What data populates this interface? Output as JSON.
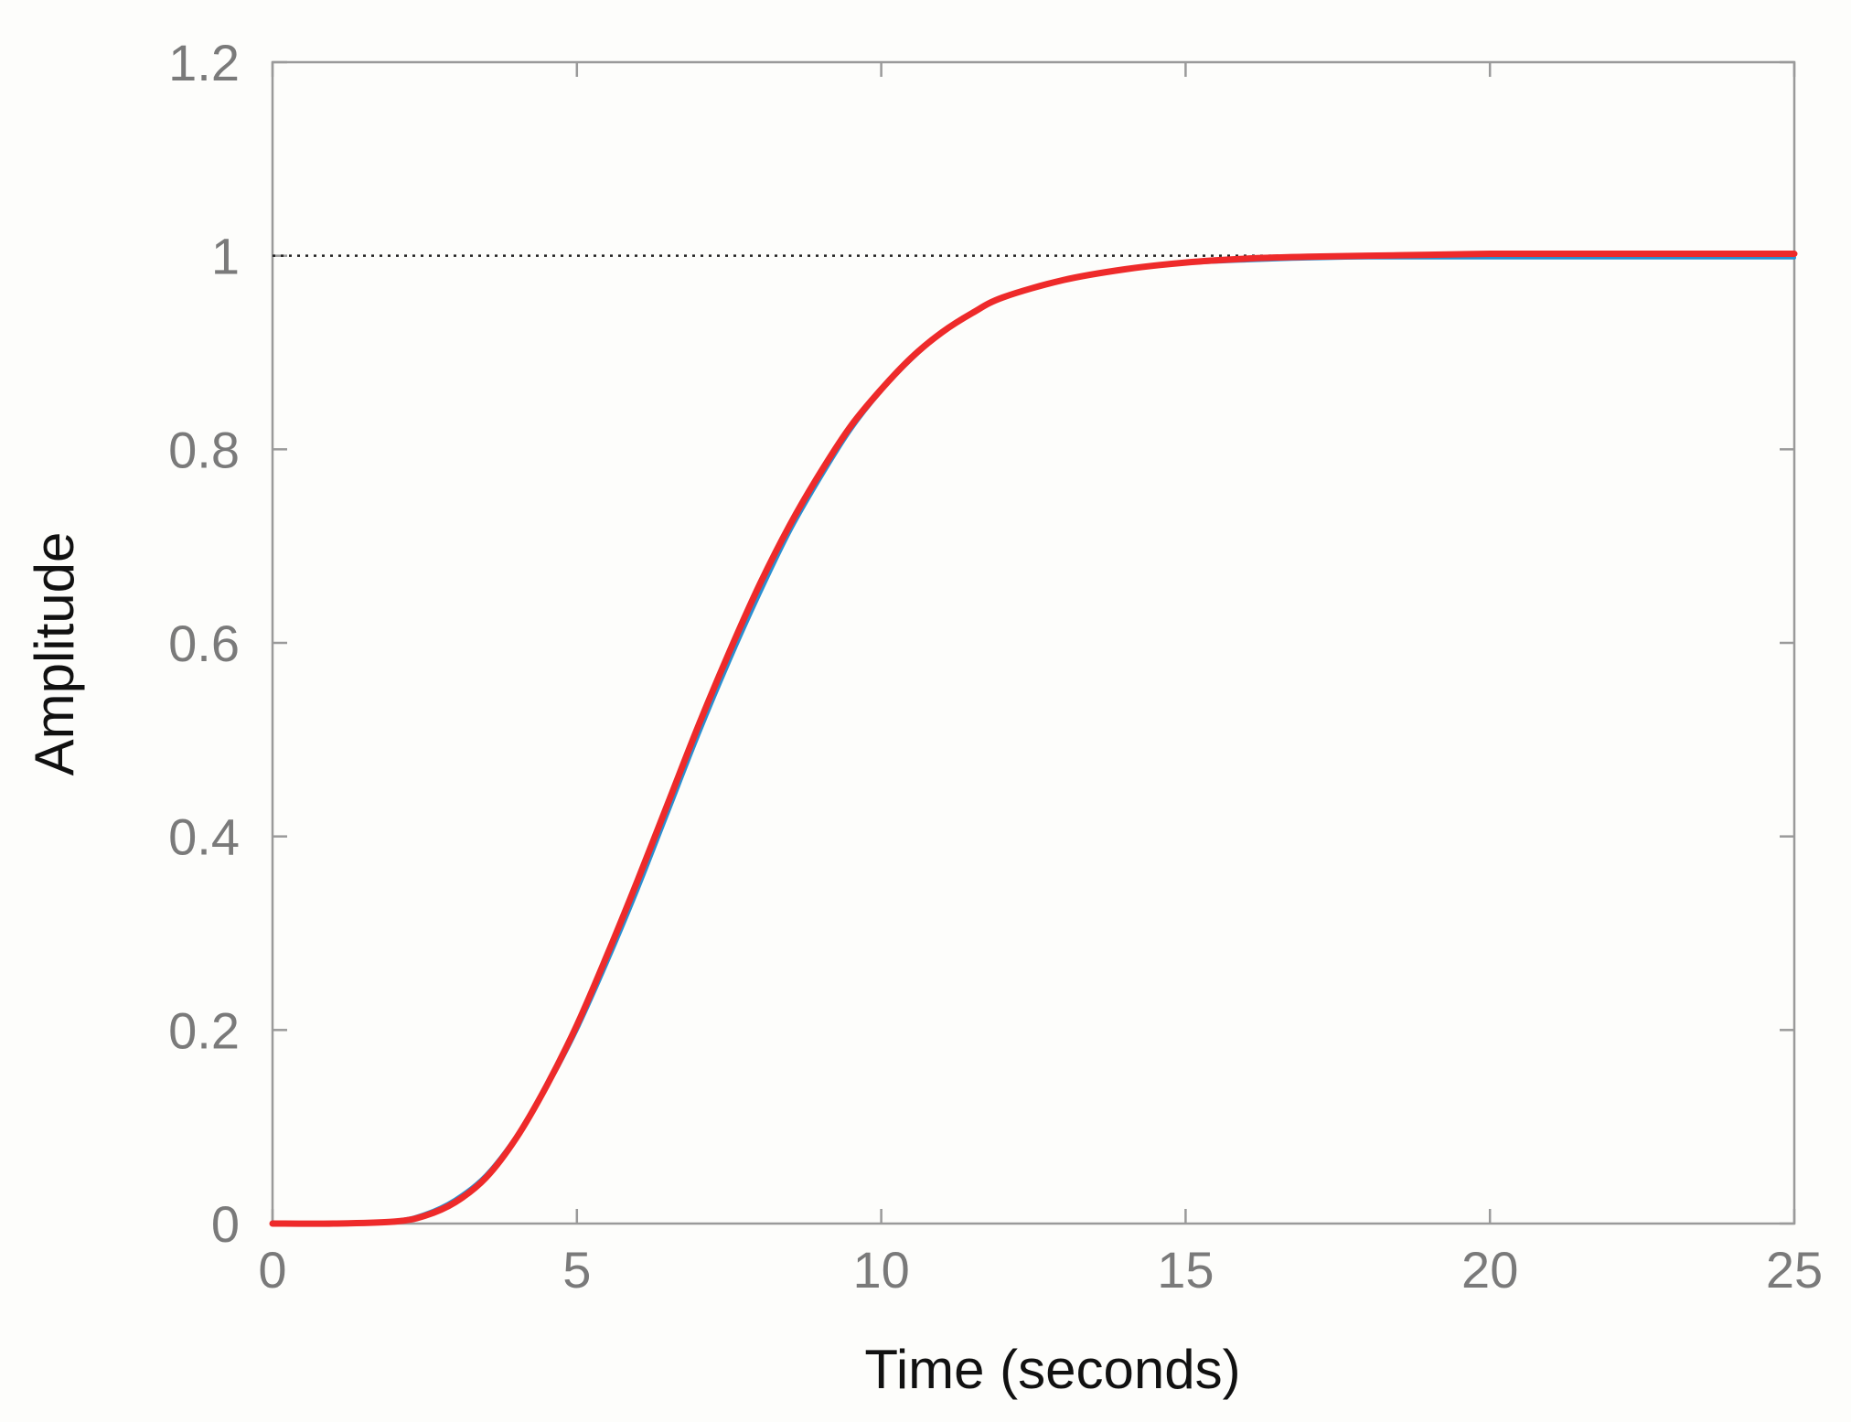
{
  "chart_data": {
    "type": "line",
    "title": "",
    "xlabel": "Time (seconds)",
    "ylabel": "Amplitude",
    "xlim": [
      0,
      25
    ],
    "ylim": [
      0,
      1.2
    ],
    "x_ticks": [
      0,
      5,
      10,
      15,
      20,
      25
    ],
    "x_tick_labels": [
      "0",
      "5",
      "10",
      "15",
      "20",
      "25"
    ],
    "y_ticks": [
      0,
      0.2,
      0.4,
      0.6,
      0.8,
      1,
      1.2
    ],
    "y_tick_labels": [
      "0",
      "0.2",
      "0.4",
      "0.6",
      "0.8",
      "1",
      "1.2"
    ],
    "grid": false,
    "legend": "none",
    "reference_line": {
      "y": 1,
      "style": "dotted",
      "color": "#222222"
    },
    "series": [
      {
        "color": "#2a8fd0",
        "x": [
          0,
          1,
          2,
          2.5,
          3,
          3.5,
          4,
          4.5,
          5,
          5.5,
          6,
          6.5,
          7,
          7.5,
          8,
          8.5,
          9,
          9.5,
          10,
          10.5,
          11,
          11.5,
          12,
          13,
          14,
          15,
          16,
          17,
          18,
          19,
          20,
          21,
          22,
          23,
          24,
          25
        ],
        "y": [
          0,
          0,
          0.003,
          0.01,
          0.025,
          0.05,
          0.09,
          0.14,
          0.2,
          0.27,
          0.345,
          0.425,
          0.505,
          0.58,
          0.65,
          0.715,
          0.77,
          0.82,
          0.86,
          0.893,
          0.92,
          0.94,
          0.957,
          0.975,
          0.986,
          0.992,
          0.995,
          0.997,
          0.998,
          0.998,
          0.998,
          0.998,
          0.998,
          0.998,
          0.998,
          0.998
        ]
      },
      {
        "color": "#ee2a2a",
        "x": [
          0,
          1,
          2,
          2.5,
          3,
          3.5,
          4,
          4.5,
          5,
          5.5,
          6,
          6.5,
          7,
          7.5,
          8,
          8.5,
          9,
          9.5,
          10,
          10.5,
          11,
          11.5,
          12,
          13,
          14,
          15,
          16,
          17,
          18,
          19,
          20,
          21,
          22,
          23,
          24,
          25
        ],
        "y": [
          0,
          0,
          0.002,
          0.008,
          0.022,
          0.047,
          0.088,
          0.142,
          0.205,
          0.278,
          0.355,
          0.435,
          0.515,
          0.59,
          0.66,
          0.722,
          0.776,
          0.824,
          0.862,
          0.895,
          0.921,
          0.941,
          0.957,
          0.975,
          0.986,
          0.993,
          0.997,
          0.999,
          1.0,
          1.001,
          1.002,
          1.002,
          1.002,
          1.002,
          1.002,
          1.002
        ]
      }
    ]
  }
}
